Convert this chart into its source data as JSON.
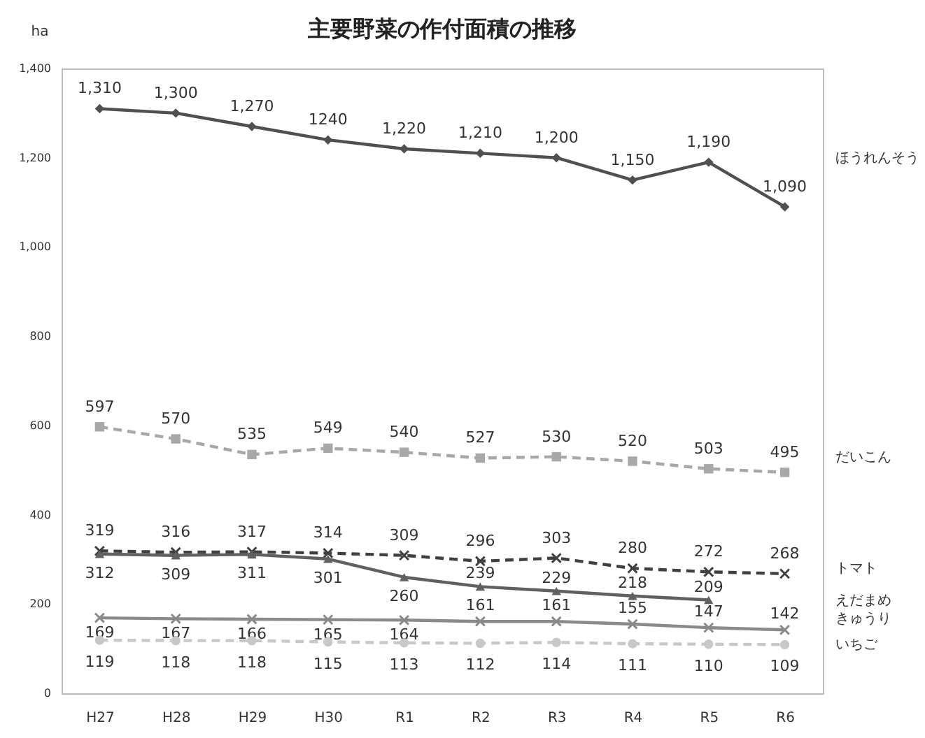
{
  "chart_data": {
    "type": "line",
    "title": "主要野菜の作付面積の推移",
    "ylabel": "ha",
    "categories": [
      "H27",
      "H28",
      "H29",
      "H30",
      "R1",
      "R2",
      "R3",
      "R4",
      "R5",
      "R6"
    ],
    "ylim": [
      0,
      1400
    ],
    "yticks": [
      {
        "value": 0,
        "label": "0"
      },
      {
        "value": 200,
        "label": "200"
      },
      {
        "value": 400,
        "label": "400"
      },
      {
        "value": 600,
        "label": "600"
      },
      {
        "value": 800,
        "label": "800"
      },
      {
        "value": 1000,
        "label": "1,000"
      },
      {
        "value": 1200,
        "label": "1,200"
      },
      {
        "value": 1400,
        "label": "1,400"
      }
    ],
    "grid": false,
    "legend": false,
    "series": [
      {
        "name": "ほうれんそう",
        "color": "#505050",
        "marker": "diamond",
        "line_style": "solid",
        "values": [
          1310,
          1300,
          1270,
          1240,
          1220,
          1210,
          1200,
          1150,
          1190,
          1090
        ],
        "value_labels": [
          "1,310",
          "1,300",
          "1,270",
          "1240",
          "1,220",
          "1,210",
          "1,200",
          "1,150",
          "1,190",
          "1,090"
        ]
      },
      {
        "name": "だいこん",
        "color": "#a8a8a8",
        "marker": "square",
        "line_style": "dashed",
        "values": [
          597,
          570,
          535,
          549,
          540,
          527,
          530,
          520,
          503,
          495
        ],
        "value_labels": [
          "597",
          "570",
          "535",
          "549",
          "540",
          "527",
          "530",
          "520",
          "503",
          "495"
        ]
      },
      {
        "name": "トマト",
        "color": "#404040",
        "marker": "cross",
        "line_style": "dashed",
        "values": [
          319,
          316,
          317,
          314,
          309,
          296,
          303,
          280,
          272,
          268
        ],
        "value_labels": [
          "319",
          "316",
          "317",
          "314",
          "309",
          "296",
          "303",
          "280",
          "272",
          "268"
        ]
      },
      {
        "name": "えだまめ",
        "color": "#606060",
        "marker": "triangle",
        "line_style": "solid",
        "values": [
          312,
          309,
          311,
          301,
          260,
          239,
          229,
          218,
          209,
          null
        ],
        "value_labels": [
          "312",
          "309",
          "311",
          "301",
          "260",
          "239",
          "229",
          "218",
          "209",
          null
        ]
      },
      {
        "name": "きゅうり",
        "color": "#8a8a8a",
        "marker": "cross",
        "line_style": "solid",
        "values": [
          169,
          167,
          166,
          165,
          164,
          161,
          161,
          155,
          147,
          142
        ],
        "value_labels": [
          "169",
          "167",
          "166",
          "165",
          "164",
          "161",
          "161",
          "155",
          "147",
          "142"
        ]
      },
      {
        "name": "いちご",
        "color": "#c8c8c8",
        "marker": "circle",
        "line_style": "dashed",
        "values": [
          119,
          118,
          118,
          115,
          113,
          112,
          114,
          111,
          110,
          109
        ],
        "value_labels": [
          "119",
          "118",
          "118",
          "115",
          "113",
          "112",
          "114",
          "111",
          "110",
          "109"
        ]
      }
    ]
  }
}
